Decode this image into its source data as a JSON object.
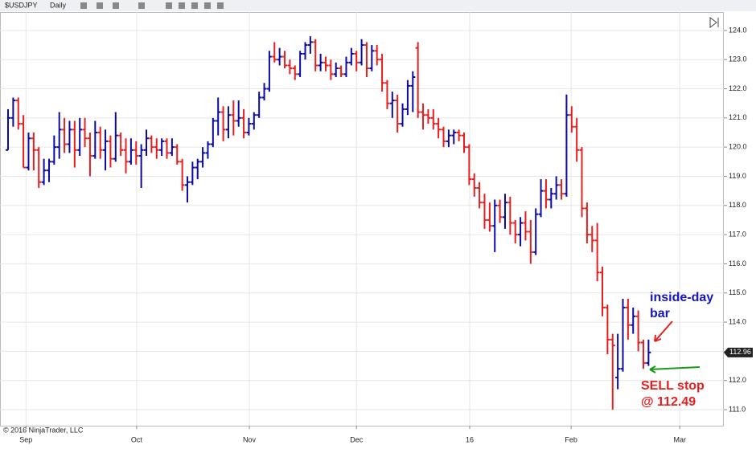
{
  "toolbar": {
    "symbol": "$USDJPY",
    "interval": "Daily"
  },
  "chart_data": {
    "type": "ohlc",
    "open": [
      119.9,
      121.0,
      121.6,
      120.8,
      119.3,
      120.3,
      119.9,
      118.8,
      119.2,
      119.5,
      120.0,
      120.6,
      120.1,
      120.6,
      119.9,
      120.6,
      120.3,
      119.7,
      120.5,
      119.9,
      120.2,
      119.6,
      120.4,
      119.9,
      119.5,
      119.9,
      119.7,
      119.9,
      120.3,
      120.0,
      119.9,
      120.2,
      119.8,
      120.0,
      119.5,
      118.7,
      118.8,
      119.3,
      119.5,
      119.8,
      120.1,
      120.9,
      121.2,
      120.6,
      121.1,
      120.9,
      121.0,
      120.5,
      120.8,
      121.1,
      121.7,
      122.0,
      123.1,
      123.0,
      123.1,
      122.8,
      122.7,
      122.5,
      123.2,
      123.5,
      123.6,
      122.8,
      122.9,
      122.8,
      122.5,
      122.7,
      122.5,
      122.9,
      123.2,
      122.9,
      123.5,
      122.7,
      123.3,
      123.0,
      122.2,
      121.5,
      121.6,
      120.8,
      121.3,
      122.1,
      123.4,
      121.2,
      121.1,
      121.0,
      120.8,
      120.6,
      120.2,
      120.4,
      120.5,
      120.4,
      120.0,
      118.9,
      118.6,
      118.1,
      117.5,
      117.3,
      118.0,
      117.6,
      118.1,
      117.4,
      117.0,
      117.4,
      117.1,
      116.4,
      117.7,
      118.5,
      118.2,
      118.4,
      118.7,
      118.4,
      121.1,
      120.7,
      119.9,
      117.9,
      117.0,
      116.8,
      115.7,
      114.5,
      113.4,
      112.1,
      112.4,
      114.5,
      113.9,
      114.2,
      113.3,
      112.6
    ],
    "high": [
      121.3,
      121.7,
      121.7,
      121.1,
      120.5,
      120.5,
      120.0,
      119.6,
      119.6,
      120.4,
      121.2,
      121.0,
      120.9,
      120.9,
      121.0,
      121.0,
      120.5,
      120.9,
      120.7,
      120.6,
      120.4,
      121.2,
      120.5,
      120.3,
      120.3,
      120.2,
      120.1,
      120.6,
      120.4,
      120.3,
      120.3,
      120.3,
      120.3,
      120.1,
      119.6,
      119.0,
      119.5,
      119.6,
      120.0,
      120.2,
      121.0,
      121.7,
      121.4,
      121.4,
      121.6,
      121.6,
      121.3,
      121.0,
      121.2,
      121.9,
      122.2,
      123.3,
      123.6,
      123.4,
      123.3,
      123.0,
      122.8,
      123.3,
      123.6,
      123.8,
      123.7,
      123.2,
      123.1,
      123.0,
      122.9,
      122.8,
      123.1,
      123.4,
      123.3,
      123.7,
      123.6,
      123.5,
      123.5,
      123.2,
      122.3,
      121.9,
      121.8,
      121.5,
      122.3,
      122.6,
      123.6,
      121.5,
      121.3,
      121.3,
      121.0,
      120.7,
      120.6,
      120.6,
      120.6,
      120.5,
      120.1,
      119.1,
      118.8,
      118.4,
      118.1,
      118.2,
      118.2,
      118.4,
      118.3,
      117.5,
      117.6,
      117.8,
      117.5,
      117.9,
      118.9,
      118.9,
      118.6,
      119.0,
      118.9,
      121.8,
      121.4,
      121.0,
      120.0,
      118.1,
      117.3,
      117.4,
      115.9,
      114.6,
      113.6,
      113.6,
      114.8,
      114.8,
      114.5,
      114.4,
      113.4,
      113.4
    ],
    "low": [
      119.9,
      120.7,
      120.6,
      119.3,
      119.2,
      119.2,
      118.6,
      118.7,
      118.8,
      119.4,
      119.6,
      119.8,
      119.8,
      119.3,
      119.7,
      120.0,
      119.0,
      119.6,
      119.6,
      119.2,
      119.3,
      119.5,
      119.7,
      119.1,
      119.4,
      119.4,
      118.6,
      119.7,
      119.8,
      119.6,
      119.7,
      119.6,
      119.7,
      119.4,
      118.5,
      118.1,
      118.7,
      118.9,
      119.3,
      119.6,
      120.0,
      120.4,
      120.2,
      120.3,
      120.4,
      120.7,
      120.3,
      120.4,
      120.6,
      121.0,
      121.6,
      121.9,
      122.9,
      122.8,
      122.7,
      122.5,
      122.3,
      122.4,
      123.0,
      123.2,
      122.6,
      122.6,
      122.6,
      122.3,
      122.4,
      122.4,
      122.4,
      122.8,
      122.6,
      122.8,
      122.4,
      122.6,
      122.8,
      121.9,
      121.3,
      121.0,
      120.5,
      120.7,
      121.1,
      121.2,
      121.0,
      120.6,
      120.8,
      120.6,
      120.3,
      120.0,
      120.0,
      120.1,
      120.2,
      119.8,
      118.7,
      118.3,
      117.9,
      117.2,
      117.1,
      116.4,
      117.4,
      117.2,
      117.0,
      116.7,
      116.6,
      116.8,
      116.0,
      116.3,
      117.6,
      117.9,
      117.9,
      118.2,
      118.2,
      118.3,
      120.5,
      119.5,
      117.6,
      116.7,
      116.4,
      115.4,
      114.2,
      112.9,
      111.0,
      111.7,
      112.3,
      113.4,
      113.6,
      113.0,
      112.4,
      112.5
    ],
    "close": [
      121.0,
      121.6,
      120.8,
      119.3,
      120.3,
      119.9,
      118.8,
      119.2,
      119.5,
      120.0,
      120.6,
      120.1,
      120.6,
      119.9,
      120.6,
      120.3,
      119.7,
      120.5,
      119.9,
      120.2,
      119.6,
      120.4,
      119.9,
      119.5,
      119.9,
      119.7,
      119.9,
      120.3,
      120.0,
      119.9,
      120.2,
      119.8,
      120.0,
      119.5,
      118.7,
      118.8,
      119.3,
      119.5,
      119.8,
      120.1,
      120.9,
      121.2,
      120.6,
      121.1,
      120.9,
      121.0,
      120.5,
      120.8,
      121.1,
      121.7,
      122.0,
      123.1,
      123.0,
      123.1,
      122.8,
      122.7,
      122.5,
      123.2,
      123.5,
      123.6,
      122.8,
      122.9,
      122.8,
      122.5,
      122.7,
      122.5,
      122.9,
      123.2,
      122.9,
      123.5,
      122.7,
      123.3,
      123.0,
      122.2,
      121.5,
      121.6,
      120.8,
      121.3,
      122.1,
      122.4,
      121.2,
      121.1,
      121.0,
      120.8,
      120.6,
      120.2,
      120.4,
      120.5,
      120.4,
      120.0,
      118.9,
      118.6,
      118.1,
      117.5,
      117.3,
      118.0,
      117.6,
      118.1,
      117.4,
      117.0,
      117.4,
      117.1,
      116.4,
      117.7,
      118.5,
      118.2,
      118.4,
      118.7,
      118.4,
      121.1,
      120.7,
      119.9,
      117.9,
      117.0,
      116.8,
      115.7,
      114.5,
      113.4,
      113.2,
      112.4,
      114.5,
      113.9,
      114.2,
      113.3,
      112.6,
      112.96
    ],
    "up_color": "#0a0aa8",
    "down_color": "#e81e1e",
    "xlim": [
      -1.57,
      139.7
    ],
    "ylim": [
      110.45,
      124.63
    ],
    "xticks": [
      {
        "value": 3.5,
        "label": "Sep"
      },
      {
        "value": 25.1,
        "label": "Oct"
      },
      {
        "value": 47.1,
        "label": "Nov"
      },
      {
        "value": 68,
        "label": "Dec"
      },
      {
        "value": 90.1,
        "label": "16"
      },
      {
        "value": 109.9,
        "label": "Feb"
      },
      {
        "value": 131.1,
        "label": "Mar"
      }
    ],
    "yticks": [
      {
        "value": 111,
        "label": "111.0"
      },
      {
        "value": 112,
        "label": "112.0"
      },
      {
        "value": 113,
        "label": "113.0"
      },
      {
        "value": 114,
        "label": "114.0"
      },
      {
        "value": 115,
        "label": "115.0"
      },
      {
        "value": 116,
        "label": "116.0"
      },
      {
        "value": 117,
        "label": "117.0"
      },
      {
        "value": 118,
        "label": "118.0"
      },
      {
        "value": 119,
        "label": "119.0"
      },
      {
        "value": 120,
        "label": "120.0"
      },
      {
        "value": 121,
        "label": "121.0"
      },
      {
        "value": 122,
        "label": "122.0"
      },
      {
        "value": 123,
        "label": "123.0"
      },
      {
        "value": 124,
        "label": "124.0"
      }
    ],
    "grid": true,
    "last_price": 112.96,
    "annotations": [
      {
        "lines": [
          "inside-day",
          "bar"
        ],
        "color": "#1414c8"
      },
      {
        "lines": [
          "SELL stop",
          "@ 112.49"
        ],
        "color": "#e81e1e"
      }
    ],
    "copyright": "© 2016 NinjaTrader, LLC"
  }
}
